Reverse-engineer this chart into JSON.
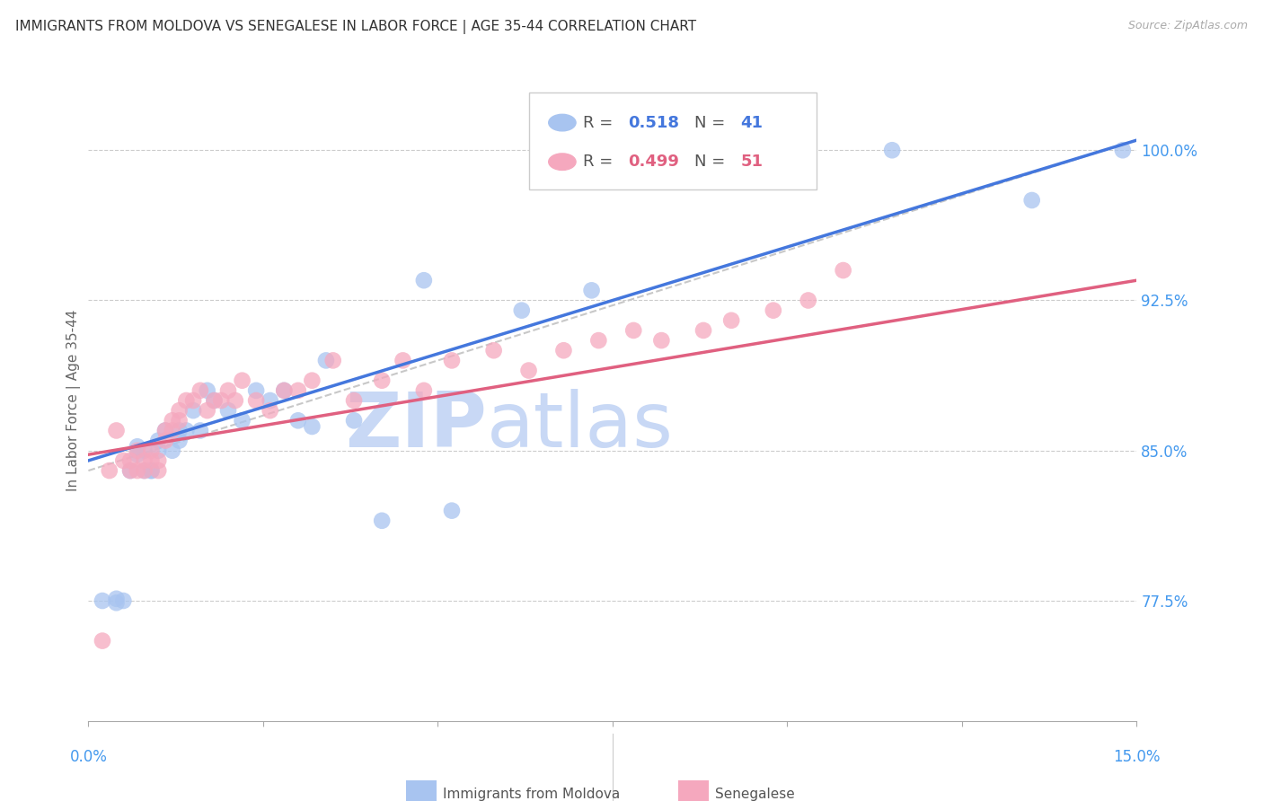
{
  "title": "IMMIGRANTS FROM MOLDOVA VS SENEGALESE IN LABOR FORCE | AGE 35-44 CORRELATION CHART",
  "source": "Source: ZipAtlas.com",
  "ylabel": "In Labor Force | Age 35-44",
  "ytick_values": [
    0.775,
    0.85,
    0.925,
    1.0
  ],
  "xlim": [
    0.0,
    0.15
  ],
  "ylim": [
    0.715,
    1.035
  ],
  "blue_color": "#a8c4f0",
  "pink_color": "#f5a8be",
  "blue_line_color": "#4477dd",
  "pink_line_color": "#e06080",
  "dashed_line_color": "#c8c8c8",
  "grid_color": "#cccccc",
  "title_color": "#333333",
  "axis_label_color": "#4499ee",
  "watermark_color_zip": "#c8d8f5",
  "watermark_color_atlas": "#c8d8f5",
  "moldova_x": [
    0.002,
    0.004,
    0.004,
    0.005,
    0.006,
    0.007,
    0.007,
    0.008,
    0.008,
    0.009,
    0.009,
    0.01,
    0.01,
    0.011,
    0.012,
    0.013,
    0.013,
    0.014,
    0.015,
    0.016,
    0.017,
    0.018,
    0.02,
    0.022,
    0.024,
    0.026,
    0.028,
    0.03,
    0.032,
    0.034,
    0.038,
    0.042,
    0.048,
    0.052,
    0.062,
    0.072,
    0.09,
    0.1,
    0.115,
    0.135,
    0.148
  ],
  "moldova_y": [
    0.775,
    0.776,
    0.774,
    0.775,
    0.84,
    0.848,
    0.852,
    0.84,
    0.85,
    0.84,
    0.84,
    0.85,
    0.855,
    0.86,
    0.85,
    0.86,
    0.855,
    0.86,
    0.87,
    0.86,
    0.88,
    0.875,
    0.87,
    0.865,
    0.88,
    0.875,
    0.88,
    0.865,
    0.862,
    0.895,
    0.865,
    0.815,
    0.935,
    0.82,
    0.92,
    0.93,
    1.0,
    1.0,
    1.0,
    0.975,
    1.0
  ],
  "senegal_x": [
    0.002,
    0.003,
    0.004,
    0.005,
    0.006,
    0.006,
    0.007,
    0.007,
    0.008,
    0.008,
    0.009,
    0.009,
    0.01,
    0.01,
    0.011,
    0.011,
    0.012,
    0.012,
    0.013,
    0.013,
    0.014,
    0.015,
    0.016,
    0.017,
    0.018,
    0.019,
    0.02,
    0.021,
    0.022,
    0.024,
    0.026,
    0.028,
    0.03,
    0.032,
    0.035,
    0.038,
    0.042,
    0.045,
    0.048,
    0.052,
    0.058,
    0.063,
    0.068,
    0.073,
    0.078,
    0.082,
    0.088,
    0.092,
    0.098,
    0.103,
    0.108
  ],
  "senegal_y": [
    0.755,
    0.84,
    0.86,
    0.845,
    0.84,
    0.845,
    0.84,
    0.85,
    0.84,
    0.845,
    0.85,
    0.845,
    0.845,
    0.84,
    0.855,
    0.86,
    0.865,
    0.86,
    0.865,
    0.87,
    0.875,
    0.875,
    0.88,
    0.87,
    0.875,
    0.875,
    0.88,
    0.875,
    0.885,
    0.875,
    0.87,
    0.88,
    0.88,
    0.885,
    0.895,
    0.875,
    0.885,
    0.895,
    0.88,
    0.895,
    0.9,
    0.89,
    0.9,
    0.905,
    0.91,
    0.905,
    0.91,
    0.915,
    0.92,
    0.925,
    0.94
  ],
  "legend_r1_val": "0.518",
  "legend_n1_val": "41",
  "legend_r2_val": "0.499",
  "legend_n2_val": "51"
}
